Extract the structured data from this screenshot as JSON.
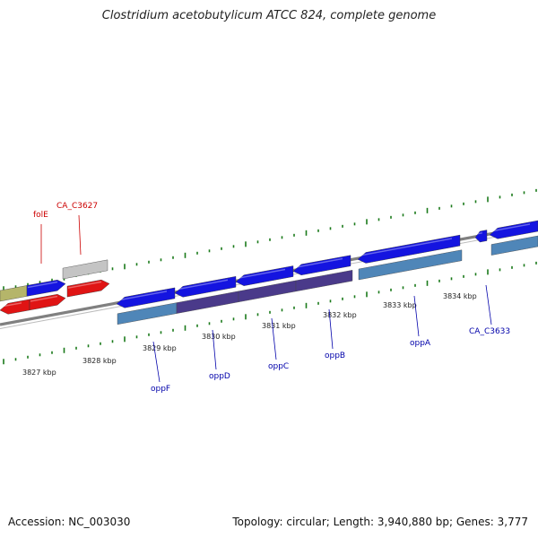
{
  "title": "Clostridium acetobutylicum ATCC 824, complete genome",
  "footer": {
    "accession": "Accession: NC_003030",
    "summary": "Topology: circular; Length: 3,940,880 bp; Genes: 3,777"
  },
  "colors": {
    "backbone": "#808080",
    "tick": "#1a7a1a",
    "cds_blue": "#1414e0",
    "cds_red": "#e01414",
    "cds_olive": "#b5b56a",
    "cds_gray": "#c4c4c4",
    "gene_steelblue": "#4f86b8",
    "gene_purple": "#4a3a8a",
    "label_red": "#cc0000",
    "label_blue": "#0000aa"
  },
  "kbp_labels": [
    "3827 kbp",
    "3828 kbp",
    "3829 kbp",
    "3830 kbp",
    "3831 kbp",
    "3832 kbp",
    "3833 kbp",
    "3834 kbp"
  ],
  "gene_labels": [
    {
      "text": "folE",
      "strand": "top"
    },
    {
      "text": "CA_C3627",
      "strand": "top"
    },
    {
      "text": "oppF",
      "strand": "bottom"
    },
    {
      "text": "oppD",
      "strand": "bottom"
    },
    {
      "text": "oppC",
      "strand": "bottom"
    },
    {
      "text": "oppB",
      "strand": "bottom"
    },
    {
      "text": "oppA",
      "strand": "bottom"
    },
    {
      "text": "CA_C3633",
      "strand": "bottom"
    }
  ]
}
